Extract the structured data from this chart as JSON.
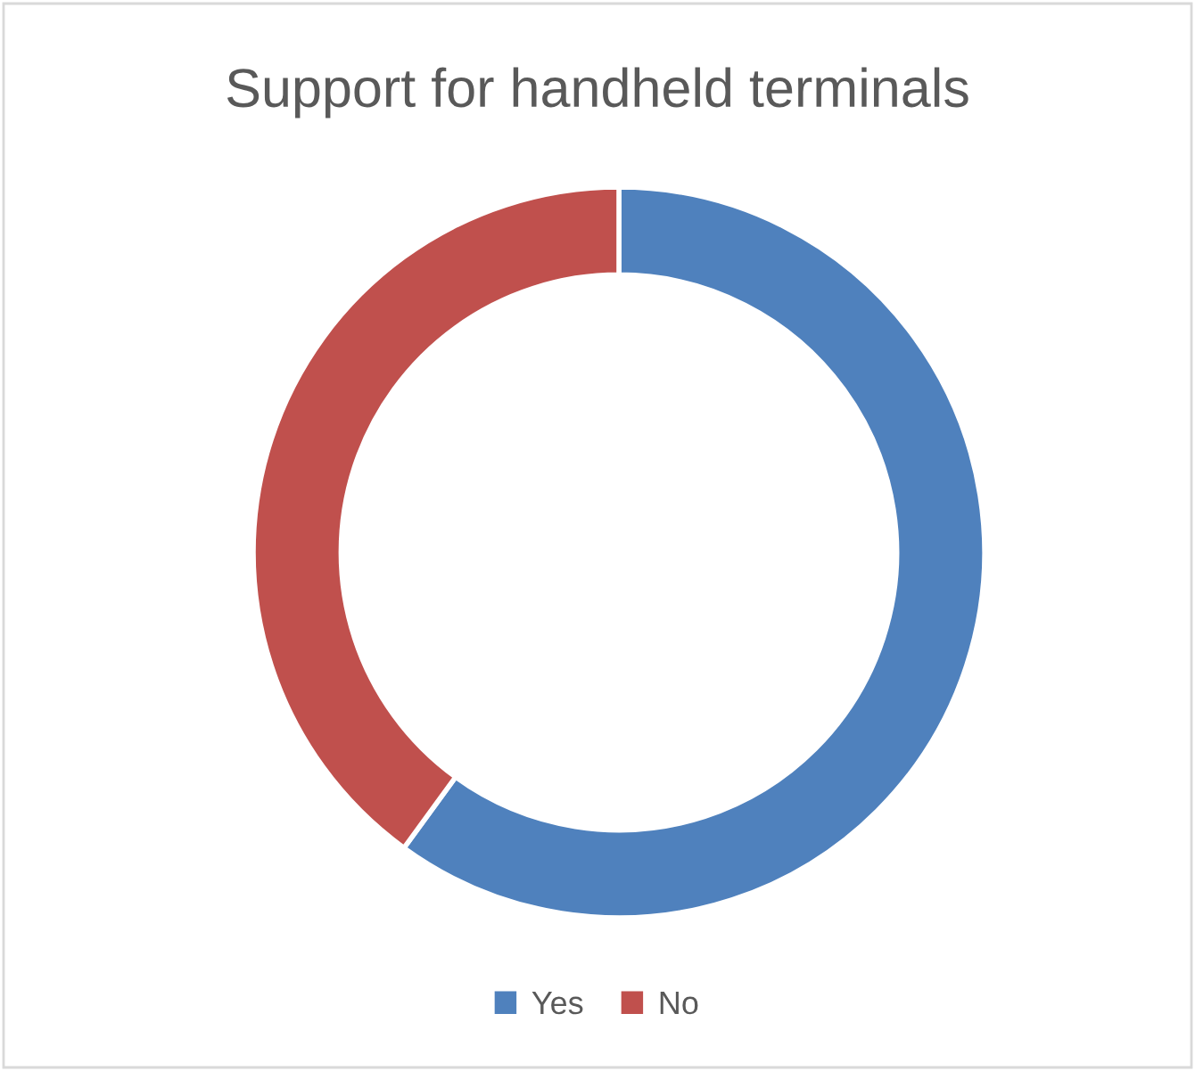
{
  "chart_data": {
    "type": "donut",
    "title": "Support for handheld terminals",
    "categories": [
      "Yes",
      "No"
    ],
    "values": [
      60,
      40
    ],
    "colors": [
      "#4f81bd",
      "#c0504d"
    ],
    "legend": "bottom"
  }
}
